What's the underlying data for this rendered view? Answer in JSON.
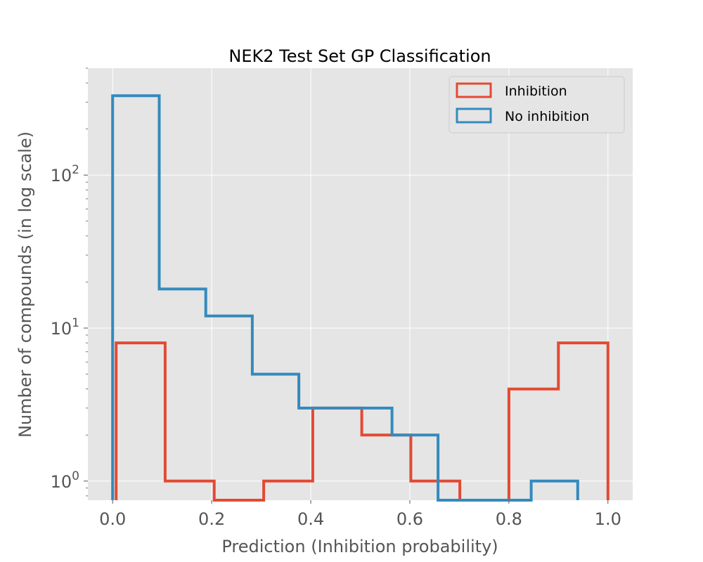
{
  "chart_data": {
    "type": "histogram",
    "title": "NEK2 Test Set GP Classification",
    "xlabel": "Prediction (Inhibition probability)",
    "ylabel": "Number of compounds (in log scale)",
    "xlim": [
      -0.05,
      1.05
    ],
    "ylim": [
      0.75,
      500
    ],
    "yscale": "log",
    "grid": true,
    "legend_position": "top-right",
    "x_ticks": [
      "0.0",
      "0.2",
      "0.4",
      "0.6",
      "0.8",
      "1.0"
    ],
    "y_ticks": [
      {
        "base": "10",
        "exp": "0",
        "value": 1
      },
      {
        "base": "10",
        "exp": "1",
        "value": 10
      },
      {
        "base": "10",
        "exp": "2",
        "value": 100
      }
    ],
    "series": [
      {
        "name": "Inhibition",
        "color": "#E24A33",
        "edges": [
          0.007,
          0.106,
          0.205,
          0.305,
          0.404,
          0.503,
          0.602,
          0.701,
          0.8,
          0.9,
          1.0
        ],
        "counts": [
          8,
          1,
          0,
          1,
          3,
          2,
          1,
          0,
          4,
          8
        ]
      },
      {
        "name": "No inhibition",
        "color": "#348ABD",
        "edges": [
          0.0,
          0.094,
          0.188,
          0.282,
          0.376,
          0.47,
          0.564,
          0.657,
          0.751,
          0.845,
          0.939
        ],
        "counts": [
          330,
          18,
          12,
          5,
          3,
          3,
          2,
          0,
          0,
          1
        ]
      }
    ]
  }
}
